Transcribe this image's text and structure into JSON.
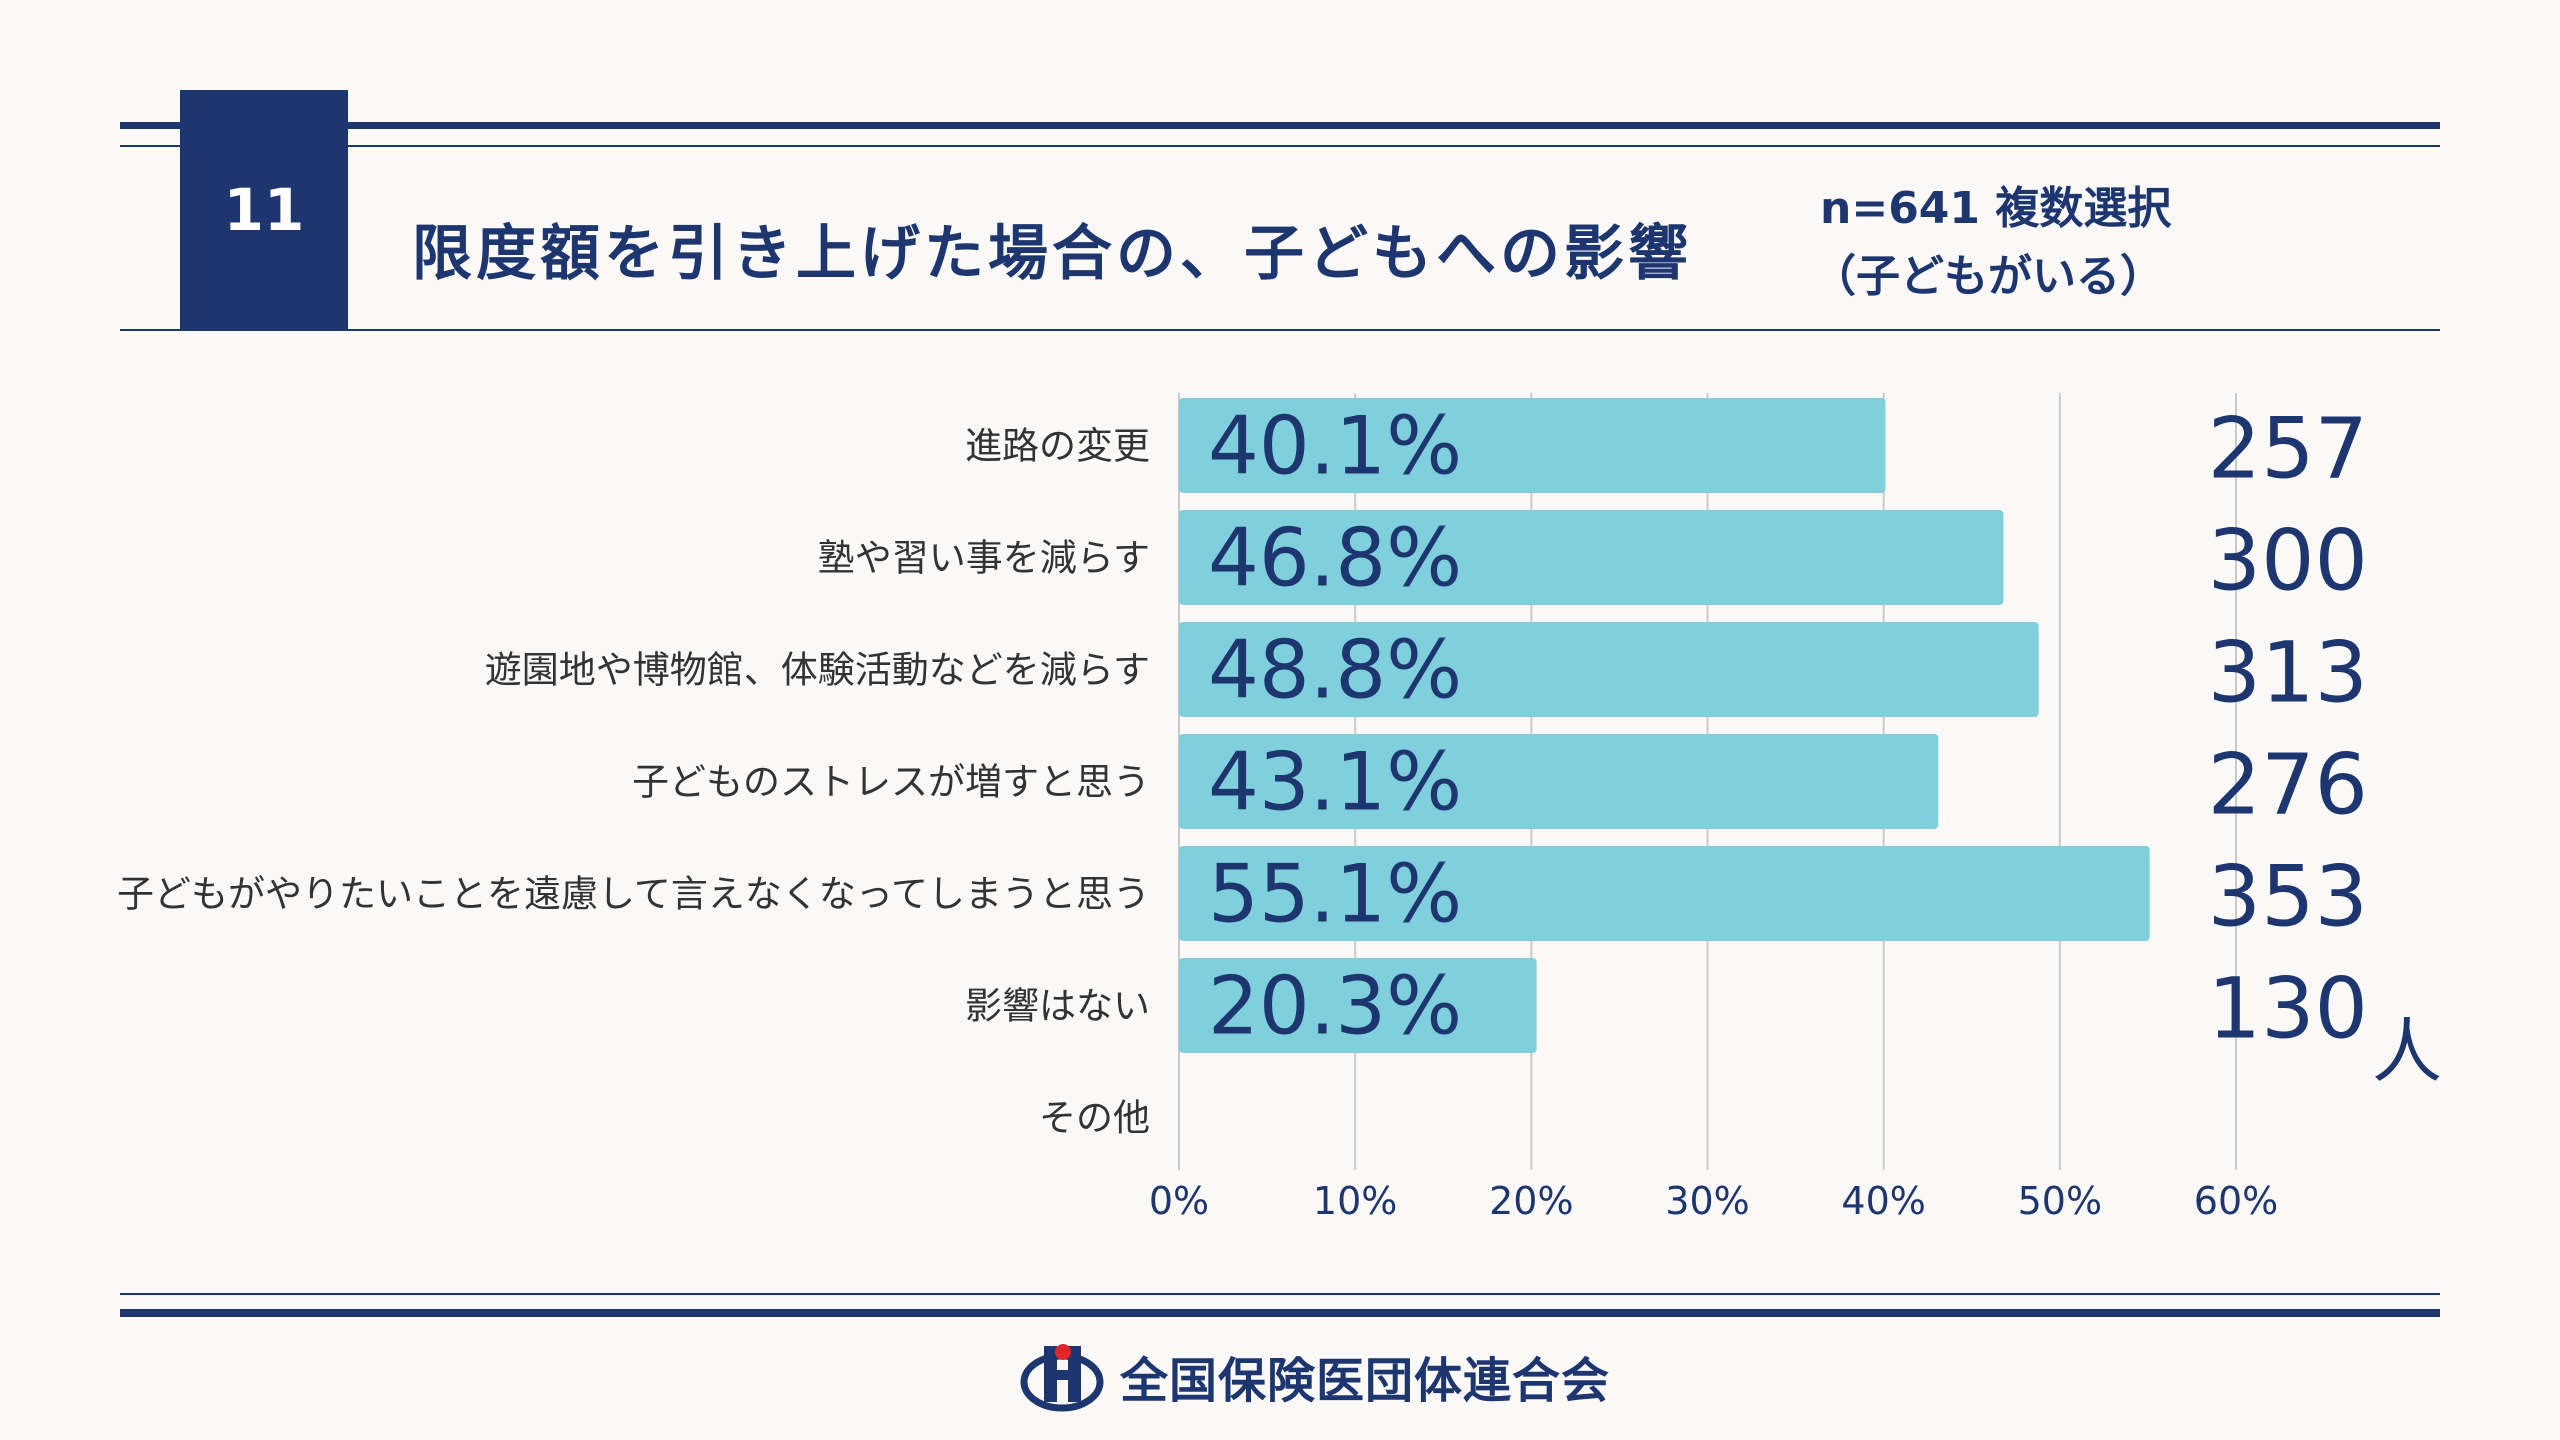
{
  "header": {
    "number": "11",
    "title": "限度額を引き上げた場合の、子どもへの影響",
    "sample_line1": "n=641 複数選択",
    "sample_line2": "（子どもがいる）"
  },
  "footer": {
    "org_name": "全国保険医団体連合会"
  },
  "colors": {
    "navy": "#1e3670",
    "bar": "#7fd0dc",
    "grid": "#c9c9c9",
    "background": "#faf9f8"
  },
  "chart_data": {
    "type": "bar",
    "orientation": "horizontal",
    "categories": [
      "進路の変更",
      "塾や習い事を減らす",
      "遊園地や博物館、体験活動などを減らす",
      "子どものストレスが増すと思う",
      "子どもがやりたいことを遠慮して言えなくなってしまうと思う",
      "影響はない",
      "その他"
    ],
    "values": [
      40.1,
      46.8,
      48.8,
      43.1,
      55.1,
      20.3,
      null
    ],
    "value_labels": [
      "40.1%",
      "46.8%",
      "48.8%",
      "43.1%",
      "55.1%",
      "20.3%",
      ""
    ],
    "counts": [
      "257",
      "300",
      "313",
      "276",
      "353",
      "130",
      ""
    ],
    "count_unit": "人",
    "xlim": [
      0,
      60
    ],
    "xticks": [
      0,
      10,
      20,
      30,
      40,
      50,
      60
    ],
    "xtick_labels": [
      "0%",
      "10%",
      "20%",
      "30%",
      "40%",
      "50%",
      "60%"
    ],
    "grid": true
  }
}
